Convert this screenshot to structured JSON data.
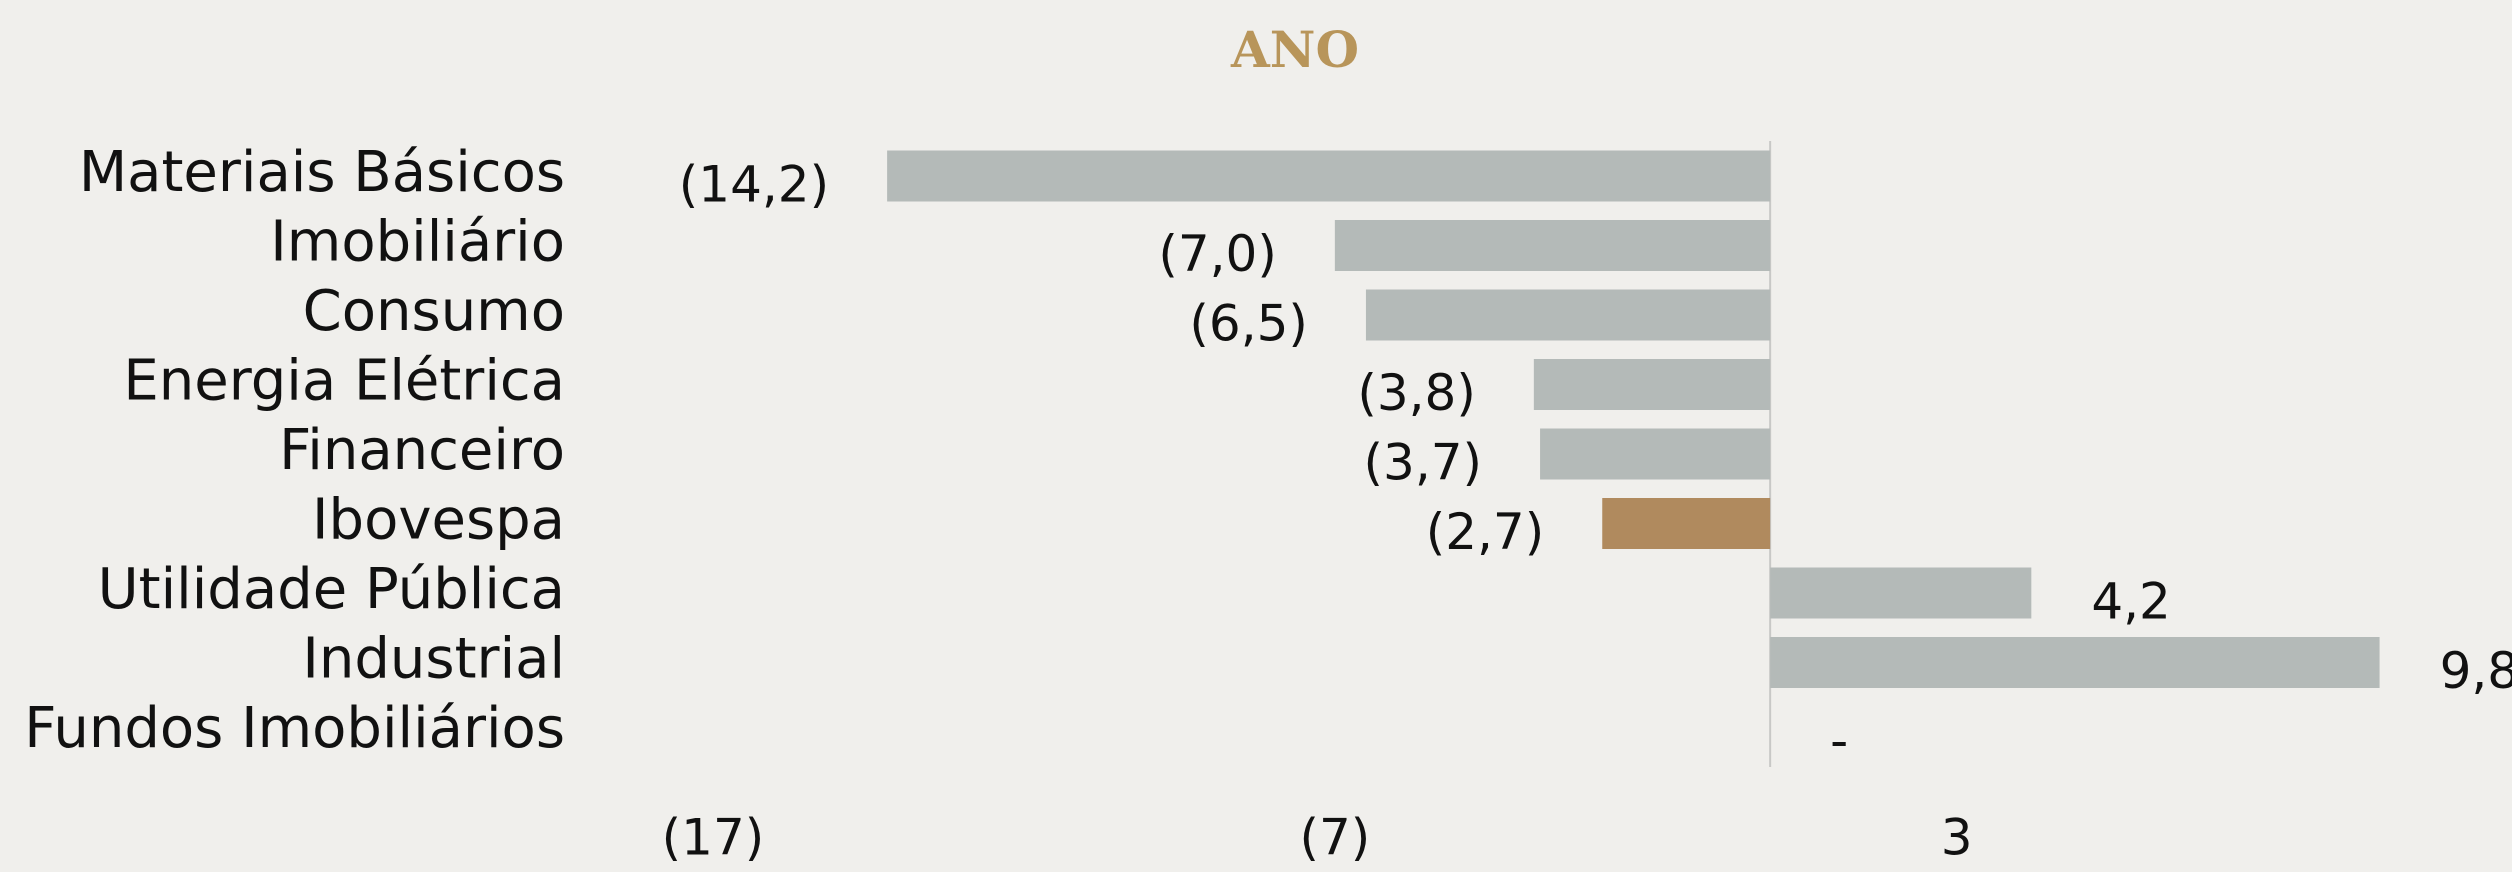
{
  "chart_data": {
    "type": "hbar",
    "title": "ANO",
    "categories": [
      "Materiais Básicos",
      "Imobiliário",
      "Consumo",
      "Energia Elétrica",
      "Financeiro",
      "Ibovespa",
      "Utilidade Pública",
      "Industrial",
      "Fundos Imobiliários"
    ],
    "values": [
      -14.2,
      -7.0,
      -6.5,
      -3.8,
      -3.7,
      -2.7,
      4.2,
      9.8,
      0
    ],
    "value_labels": [
      "(14,2)",
      "(7,0)",
      "(6,5)",
      "(3,8)",
      "(3,7)",
      "(2,7)",
      "4,2",
      "9,8",
      "-"
    ],
    "colors": [
      "#b4bab8",
      "#b4bab8",
      "#b4bab8",
      "#b4bab8",
      "#b4bab8",
      "#b08a5e",
      "#b4bab8",
      "#b4bab8",
      "#b4bab8"
    ],
    "xlim": [
      -17,
      10
    ],
    "xticks": [
      {
        "value": -17,
        "label": "(17)"
      },
      {
        "value": -7,
        "label": "(7)"
      },
      3
    ]
  }
}
